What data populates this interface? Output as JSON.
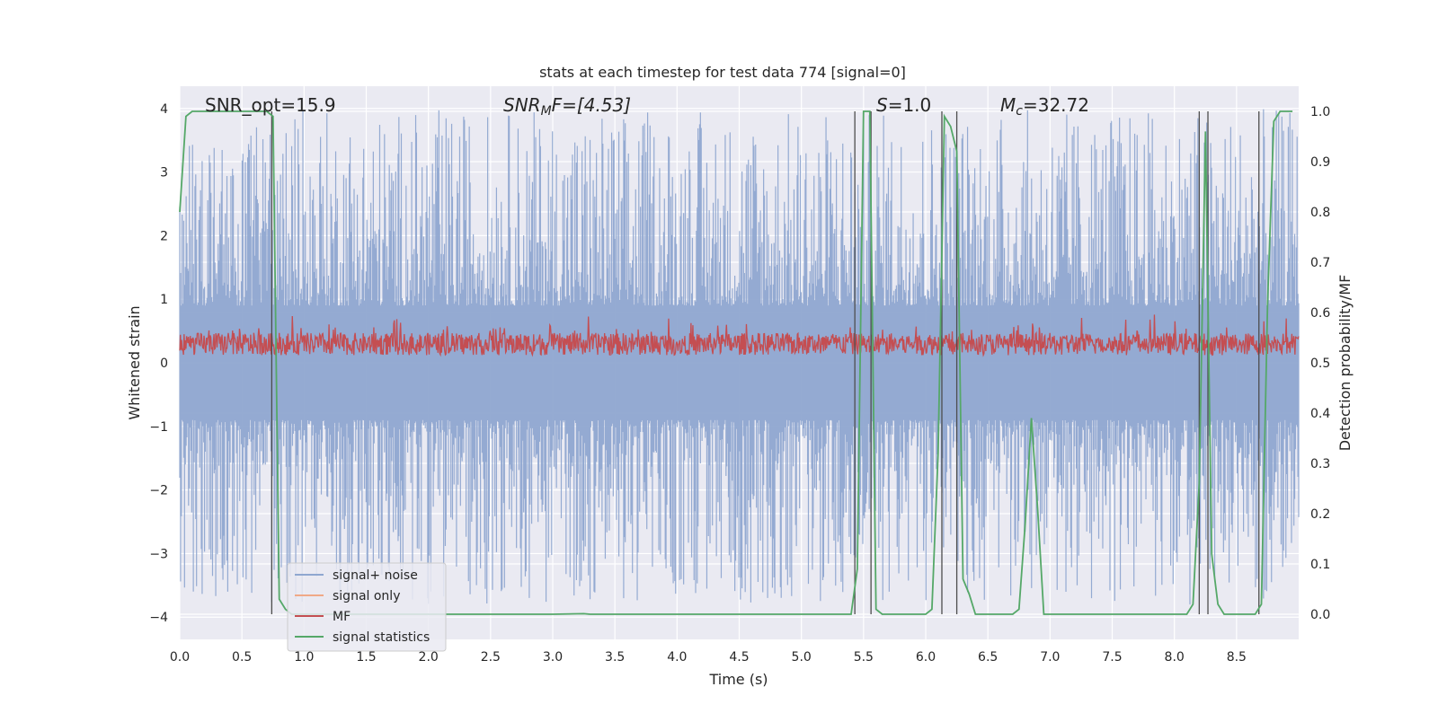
{
  "chart_data": {
    "type": "line",
    "title": "stats at each timestep for test data 774 [signal=0]",
    "xlabel": "Time (s)",
    "ylabel_left": "Whitened strain",
    "ylabel_right": "Detection probability/MF",
    "xlim": [
      0,
      9.0
    ],
    "ylim_left": [
      -4.35,
      4.35
    ],
    "ylim_right": [
      -0.05,
      1.05
    ],
    "x_ticks": [
      "0.0",
      "0.5",
      "1.0",
      "1.5",
      "2.0",
      "2.5",
      "3.0",
      "3.5",
      "4.0",
      "4.5",
      "5.0",
      "5.5",
      "6.0",
      "6.5",
      "7.0",
      "7.5",
      "8.0",
      "8.5"
    ],
    "y_ticks_left": [
      "4",
      "3",
      "2",
      "1",
      "0",
      "−1",
      "−2",
      "−3",
      "−4"
    ],
    "y_ticks_right": [
      "1.0",
      "0.9",
      "0.8",
      "0.7",
      "0.6",
      "0.5",
      "0.4",
      "0.3",
      "0.2",
      "0.1",
      "0.0"
    ],
    "grid": true,
    "legend_position": "lower-left",
    "annotations": {
      "snr_opt": "SNR_opt=15.9",
      "snr_mf_base": "SNR",
      "snr_mf_sub": "M",
      "snr_mf_rest": "F=[4.53]",
      "s_base": "S",
      "s_rest": "=1.0",
      "mc_base": "M",
      "mc_sub": "c",
      "mc_rest": "=32.72"
    },
    "series": [
      {
        "name": "signal+ noise",
        "color": "#8fa7d0",
        "description_range": [
          -3.8,
          4.0
        ]
      },
      {
        "name": "signal only",
        "color": "#f0a987",
        "values": []
      },
      {
        "name": "MF",
        "color": "#c44e52",
        "description_range": [
          0.1,
          0.9
        ]
      },
      {
        "name": "signal statistics",
        "color": "#55a868",
        "axis": "right",
        "x": [
          0.0,
          0.05,
          0.1,
          0.2,
          0.3,
          0.4,
          0.5,
          0.6,
          0.65,
          0.7,
          0.75,
          0.8,
          0.85,
          0.9,
          1.0,
          2.0,
          3.0,
          3.25,
          3.3,
          4.0,
          5.0,
          5.4,
          5.45,
          5.5,
          5.55,
          5.6,
          5.65,
          5.7,
          6.0,
          6.05,
          6.1,
          6.15,
          6.2,
          6.25,
          6.3,
          6.35,
          6.4,
          6.5,
          6.7,
          6.75,
          6.8,
          6.85,
          6.9,
          6.95,
          7.0,
          7.5,
          8.1,
          8.15,
          8.2,
          8.25,
          8.3,
          8.35,
          8.4,
          8.5,
          8.65,
          8.7,
          8.75,
          8.8,
          8.85,
          8.9,
          8.95
        ],
        "y": [
          0.8,
          0.99,
          1.0,
          1.0,
          1.0,
          1.0,
          1.0,
          1.0,
          1.0,
          1.0,
          0.99,
          0.03,
          0.01,
          0.0,
          0.0,
          0.0,
          0.0,
          0.001,
          0.0,
          0.0,
          0.0,
          0.0,
          0.09,
          1.0,
          1.0,
          0.01,
          0.0,
          0.0,
          0.0,
          0.01,
          0.32,
          0.99,
          0.97,
          0.92,
          0.07,
          0.04,
          0.0,
          0.0,
          0.0,
          0.01,
          0.18,
          0.39,
          0.21,
          0.0,
          0.0,
          0.0,
          0.0,
          0.02,
          0.26,
          0.96,
          0.12,
          0.02,
          0.0,
          0.0,
          0.0,
          0.02,
          0.62,
          0.98,
          1.0,
          1.0,
          1.0
        ]
      }
    ],
    "vlines_x": [
      0.74,
      5.43,
      5.56,
      6.13,
      6.25,
      8.2,
      8.27,
      8.68
    ]
  }
}
